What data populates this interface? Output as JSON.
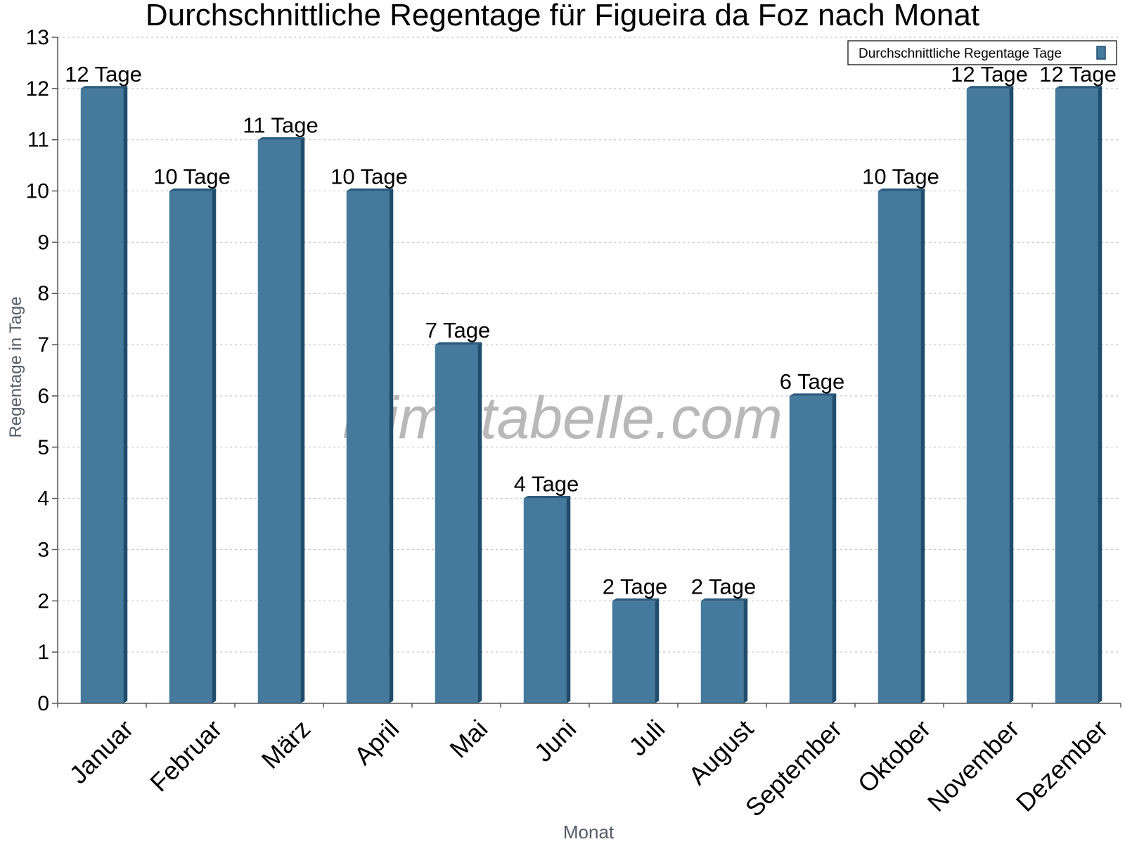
{
  "chart_data": {
    "type": "bar",
    "title": "Durchschnittliche Regentage für Figueira da Foz nach Monat",
    "xlabel": "Monat",
    "ylabel": "Regentage in Tage",
    "categories": [
      "Januar",
      "Februar",
      "März",
      "April",
      "Mai",
      "Juni",
      "Juli",
      "August",
      "September",
      "Oktober",
      "November",
      "Dezember"
    ],
    "values": [
      12,
      10,
      11,
      10,
      7,
      4,
      2,
      2,
      6,
      10,
      12,
      12
    ],
    "value_labels": [
      "12 Tage",
      "10 Tage",
      "11 Tage",
      "10 Tage",
      "7 Tage",
      "4 Tage",
      "2 Tage",
      "2 Tage",
      "6 Tage",
      "10 Tage",
      "12 Tage",
      "12 Tage"
    ],
    "yticks": [
      "0",
      "1",
      "2",
      "3",
      "4",
      "5",
      "6",
      "7",
      "8",
      "9",
      "10",
      "11",
      "12",
      "13"
    ],
    "ylim": [
      0,
      13
    ],
    "grid": true,
    "legend": {
      "label": "Durchschnittliche Regentage Tage",
      "position": "top-right"
    },
    "watermark": "klimatabelle.com",
    "colors": {
      "bar": "#467a9c",
      "bar_side": "#1e4d6e",
      "bar_top": "#2a5b7e",
      "grid": "#bbbbbb",
      "axis": "#555555",
      "axis_title": "#555c66",
      "watermark": "#b8b8b8"
    }
  }
}
